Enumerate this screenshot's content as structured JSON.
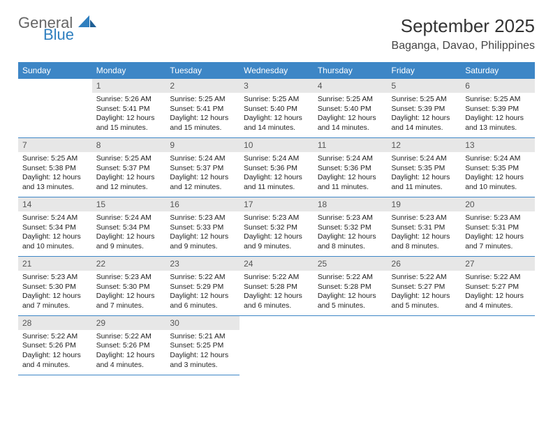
{
  "brand": {
    "word1": "General",
    "word2": "Blue"
  },
  "header": {
    "month_title": "September 2025",
    "location": "Baganga, Davao, Philippines"
  },
  "colors": {
    "header_bg": "#3d86c6",
    "header_text": "#ffffff",
    "daynum_bg": "#e7e7e7",
    "daynum_text": "#555555",
    "body_text": "#222222",
    "rule": "#3d86c6",
    "logo_gray": "#666666",
    "logo_blue": "#2f7fbf"
  },
  "typography": {
    "month_title_fontsize": 26,
    "location_fontsize": 16,
    "dayhead_fontsize": 12,
    "daynum_fontsize": 12,
    "body_fontsize": 10.4
  },
  "day_names": [
    "Sunday",
    "Monday",
    "Tuesday",
    "Wednesday",
    "Thursday",
    "Friday",
    "Saturday"
  ],
  "weeks": [
    [
      {
        "n": "",
        "sunrise": "",
        "sunset": "",
        "daylight": ""
      },
      {
        "n": "1",
        "sunrise": "Sunrise: 5:26 AM",
        "sunset": "Sunset: 5:41 PM",
        "daylight": "Daylight: 12 hours and 15 minutes."
      },
      {
        "n": "2",
        "sunrise": "Sunrise: 5:25 AM",
        "sunset": "Sunset: 5:41 PM",
        "daylight": "Daylight: 12 hours and 15 minutes."
      },
      {
        "n": "3",
        "sunrise": "Sunrise: 5:25 AM",
        "sunset": "Sunset: 5:40 PM",
        "daylight": "Daylight: 12 hours and 14 minutes."
      },
      {
        "n": "4",
        "sunrise": "Sunrise: 5:25 AM",
        "sunset": "Sunset: 5:40 PM",
        "daylight": "Daylight: 12 hours and 14 minutes."
      },
      {
        "n": "5",
        "sunrise": "Sunrise: 5:25 AM",
        "sunset": "Sunset: 5:39 PM",
        "daylight": "Daylight: 12 hours and 14 minutes."
      },
      {
        "n": "6",
        "sunrise": "Sunrise: 5:25 AM",
        "sunset": "Sunset: 5:39 PM",
        "daylight": "Daylight: 12 hours and 13 minutes."
      }
    ],
    [
      {
        "n": "7",
        "sunrise": "Sunrise: 5:25 AM",
        "sunset": "Sunset: 5:38 PM",
        "daylight": "Daylight: 12 hours and 13 minutes."
      },
      {
        "n": "8",
        "sunrise": "Sunrise: 5:25 AM",
        "sunset": "Sunset: 5:37 PM",
        "daylight": "Daylight: 12 hours and 12 minutes."
      },
      {
        "n": "9",
        "sunrise": "Sunrise: 5:24 AM",
        "sunset": "Sunset: 5:37 PM",
        "daylight": "Daylight: 12 hours and 12 minutes."
      },
      {
        "n": "10",
        "sunrise": "Sunrise: 5:24 AM",
        "sunset": "Sunset: 5:36 PM",
        "daylight": "Daylight: 12 hours and 11 minutes."
      },
      {
        "n": "11",
        "sunrise": "Sunrise: 5:24 AM",
        "sunset": "Sunset: 5:36 PM",
        "daylight": "Daylight: 12 hours and 11 minutes."
      },
      {
        "n": "12",
        "sunrise": "Sunrise: 5:24 AM",
        "sunset": "Sunset: 5:35 PM",
        "daylight": "Daylight: 12 hours and 11 minutes."
      },
      {
        "n": "13",
        "sunrise": "Sunrise: 5:24 AM",
        "sunset": "Sunset: 5:35 PM",
        "daylight": "Daylight: 12 hours and 10 minutes."
      }
    ],
    [
      {
        "n": "14",
        "sunrise": "Sunrise: 5:24 AM",
        "sunset": "Sunset: 5:34 PM",
        "daylight": "Daylight: 12 hours and 10 minutes."
      },
      {
        "n": "15",
        "sunrise": "Sunrise: 5:24 AM",
        "sunset": "Sunset: 5:34 PM",
        "daylight": "Daylight: 12 hours and 9 minutes."
      },
      {
        "n": "16",
        "sunrise": "Sunrise: 5:23 AM",
        "sunset": "Sunset: 5:33 PM",
        "daylight": "Daylight: 12 hours and 9 minutes."
      },
      {
        "n": "17",
        "sunrise": "Sunrise: 5:23 AM",
        "sunset": "Sunset: 5:32 PM",
        "daylight": "Daylight: 12 hours and 9 minutes."
      },
      {
        "n": "18",
        "sunrise": "Sunrise: 5:23 AM",
        "sunset": "Sunset: 5:32 PM",
        "daylight": "Daylight: 12 hours and 8 minutes."
      },
      {
        "n": "19",
        "sunrise": "Sunrise: 5:23 AM",
        "sunset": "Sunset: 5:31 PM",
        "daylight": "Daylight: 12 hours and 8 minutes."
      },
      {
        "n": "20",
        "sunrise": "Sunrise: 5:23 AM",
        "sunset": "Sunset: 5:31 PM",
        "daylight": "Daylight: 12 hours and 7 minutes."
      }
    ],
    [
      {
        "n": "21",
        "sunrise": "Sunrise: 5:23 AM",
        "sunset": "Sunset: 5:30 PM",
        "daylight": "Daylight: 12 hours and 7 minutes."
      },
      {
        "n": "22",
        "sunrise": "Sunrise: 5:23 AM",
        "sunset": "Sunset: 5:30 PM",
        "daylight": "Daylight: 12 hours and 7 minutes."
      },
      {
        "n": "23",
        "sunrise": "Sunrise: 5:22 AM",
        "sunset": "Sunset: 5:29 PM",
        "daylight": "Daylight: 12 hours and 6 minutes."
      },
      {
        "n": "24",
        "sunrise": "Sunrise: 5:22 AM",
        "sunset": "Sunset: 5:28 PM",
        "daylight": "Daylight: 12 hours and 6 minutes."
      },
      {
        "n": "25",
        "sunrise": "Sunrise: 5:22 AM",
        "sunset": "Sunset: 5:28 PM",
        "daylight": "Daylight: 12 hours and 5 minutes."
      },
      {
        "n": "26",
        "sunrise": "Sunrise: 5:22 AM",
        "sunset": "Sunset: 5:27 PM",
        "daylight": "Daylight: 12 hours and 5 minutes."
      },
      {
        "n": "27",
        "sunrise": "Sunrise: 5:22 AM",
        "sunset": "Sunset: 5:27 PM",
        "daylight": "Daylight: 12 hours and 4 minutes."
      }
    ],
    [
      {
        "n": "28",
        "sunrise": "Sunrise: 5:22 AM",
        "sunset": "Sunset: 5:26 PM",
        "daylight": "Daylight: 12 hours and 4 minutes."
      },
      {
        "n": "29",
        "sunrise": "Sunrise: 5:22 AM",
        "sunset": "Sunset: 5:26 PM",
        "daylight": "Daylight: 12 hours and 4 minutes."
      },
      {
        "n": "30",
        "sunrise": "Sunrise: 5:21 AM",
        "sunset": "Sunset: 5:25 PM",
        "daylight": "Daylight: 12 hours and 3 minutes."
      },
      {
        "n": "",
        "sunrise": "",
        "sunset": "",
        "daylight": ""
      },
      {
        "n": "",
        "sunrise": "",
        "sunset": "",
        "daylight": ""
      },
      {
        "n": "",
        "sunrise": "",
        "sunset": "",
        "daylight": ""
      },
      {
        "n": "",
        "sunrise": "",
        "sunset": "",
        "daylight": ""
      }
    ]
  ]
}
